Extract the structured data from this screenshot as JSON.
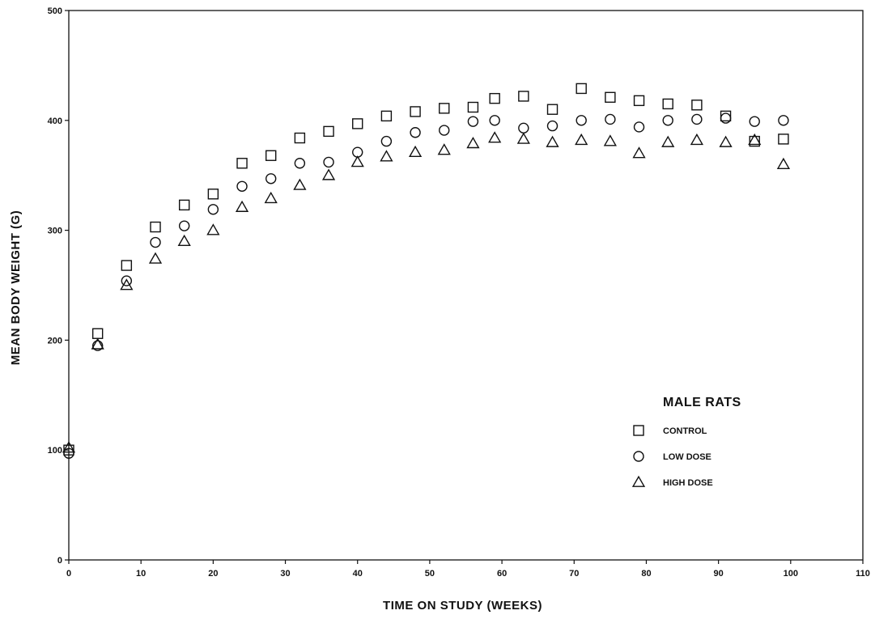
{
  "chart_data": {
    "type": "scatter",
    "title": "",
    "xlabel": "TIME ON STUDY (WEEKS)",
    "ylabel": "MEAN BODY WEIGHT (G)",
    "xlim": [
      0,
      110
    ],
    "ylim": [
      0,
      500
    ],
    "x_ticks": [
      "0",
      "10",
      "20",
      "30",
      "40",
      "50",
      "60",
      "70",
      "80",
      "90",
      "100",
      "110"
    ],
    "y_ticks": [
      "0",
      "100",
      "200",
      "300",
      "400",
      "500"
    ],
    "grid": false,
    "legend": {
      "title": "MALE RATS",
      "placement": "right",
      "entries": [
        {
          "label": "CONTROL",
          "marker": "square"
        },
        {
          "label": "LOW DOSE",
          "marker": "circle"
        },
        {
          "label": "HIGH DOSE",
          "marker": "triangle"
        }
      ]
    },
    "series": [
      {
        "name": "CONTROL",
        "marker": "square",
        "points": [
          [
            0,
            100
          ],
          [
            4,
            206
          ],
          [
            8,
            268
          ],
          [
            12,
            303
          ],
          [
            16,
            323
          ],
          [
            20,
            333
          ],
          [
            24,
            361
          ],
          [
            28,
            368
          ],
          [
            32,
            384
          ],
          [
            36,
            390
          ],
          [
            40,
            397
          ],
          [
            44,
            404
          ],
          [
            48,
            408
          ],
          [
            52,
            411
          ],
          [
            56,
            412
          ],
          [
            59,
            420
          ],
          [
            63,
            422
          ],
          [
            67,
            410
          ],
          [
            71,
            429
          ],
          [
            75,
            421
          ],
          [
            79,
            418
          ],
          [
            83,
            415
          ],
          [
            87,
            414
          ],
          [
            91,
            404
          ],
          [
            95,
            381
          ],
          [
            99,
            383
          ]
        ]
      },
      {
        "name": "LOW DOSE",
        "marker": "circle",
        "points": [
          [
            0,
            97
          ],
          [
            4,
            195
          ],
          [
            8,
            254
          ],
          [
            12,
            289
          ],
          [
            16,
            304
          ],
          [
            20,
            319
          ],
          [
            24,
            340
          ],
          [
            28,
            347
          ],
          [
            32,
            361
          ],
          [
            36,
            362
          ],
          [
            40,
            371
          ],
          [
            44,
            381
          ],
          [
            48,
            389
          ],
          [
            52,
            391
          ],
          [
            56,
            399
          ],
          [
            59,
            400
          ],
          [
            63,
            393
          ],
          [
            67,
            395
          ],
          [
            71,
            400
          ],
          [
            75,
            401
          ],
          [
            79,
            394
          ],
          [
            83,
            400
          ],
          [
            87,
            401
          ],
          [
            91,
            402
          ],
          [
            95,
            399
          ],
          [
            99,
            400
          ]
        ]
      },
      {
        "name": "HIGH DOSE",
        "marker": "triangle",
        "points": [
          [
            0,
            102
          ],
          [
            4,
            196
          ],
          [
            8,
            250
          ],
          [
            12,
            274
          ],
          [
            16,
            290
          ],
          [
            20,
            300
          ],
          [
            24,
            321
          ],
          [
            28,
            329
          ],
          [
            32,
            341
          ],
          [
            36,
            350
          ],
          [
            40,
            362
          ],
          [
            44,
            367
          ],
          [
            48,
            371
          ],
          [
            52,
            373
          ],
          [
            56,
            379
          ],
          [
            59,
            384
          ],
          [
            63,
            383
          ],
          [
            67,
            380
          ],
          [
            71,
            382
          ],
          [
            75,
            381
          ],
          [
            79,
            370
          ],
          [
            83,
            380
          ],
          [
            87,
            382
          ],
          [
            91,
            380
          ],
          [
            95,
            382
          ],
          [
            99,
            360
          ]
        ]
      }
    ]
  }
}
